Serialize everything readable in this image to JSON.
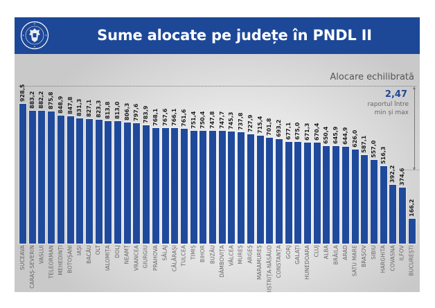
{
  "header": {
    "title": "Sume alocate pe județe în PNDL II",
    "logo_text_top": "GUVERNUL",
    "logo_text_bottom": "ROMÂNIEI"
  },
  "annotations": {
    "balance_label": "Alocare echilibrată",
    "ratio_value": "2,47",
    "ratio_desc_line1": "raportul între",
    "ratio_desc_line2": "min și max"
  },
  "colors": {
    "header_bg": "#1d4898",
    "bar": "#1f4a9c",
    "ratio_value": "#1d4898"
  },
  "chart_data": {
    "type": "bar",
    "title": "Sume alocate pe județe în PNDL II",
    "xlabel": "",
    "ylabel": "",
    "ylim": [
      0,
      928.5
    ],
    "grid": false,
    "legend": null,
    "categories": [
      "SUCEAVA",
      "CARAȘ-SEVERIN",
      "VASLUI",
      "TELEORMAN",
      "MEHEDINȚI",
      "BOTOȘANI",
      "IAȘI",
      "BACĂU",
      "OLT",
      "IALOMIȚA",
      "DOLJ",
      "NEAMȚ",
      "VRANCEA",
      "GIURGIU",
      "PRAHOVA",
      "SĂLAJ",
      "CĂLĂRAȘI",
      "TULCEA",
      "TIMIȘ",
      "BIHOR",
      "BUZĂU",
      "DÂMBOVIȚA",
      "VÂLCEA",
      "MUREȘ",
      "ARGEȘ",
      "MARAMUREȘ",
      "BISTRIȚA-NĂSĂUD",
      "CONSTANȚA",
      "GORJ",
      "GALAȚI",
      "HUNEDOARA",
      "CLUJ",
      "ALBA",
      "BRĂILA",
      "ARAD",
      "SATU MARE",
      "BRAȘOV",
      "SIBIU",
      "HARGHITA",
      "COVASNA",
      "ILFOV",
      "BUCUREȘTI"
    ],
    "values": [
      928.5,
      883.2,
      882.2,
      875.8,
      848.9,
      847.8,
      831.3,
      827.1,
      823.3,
      813.8,
      813.0,
      806.3,
      797.6,
      783.9,
      768.1,
      767.6,
      766.1,
      761.6,
      751.4,
      750.4,
      747.8,
      747.7,
      745.3,
      737.8,
      727.9,
      715.4,
      701.8,
      693.2,
      677.1,
      675.0,
      671.3,
      670.4,
      650.4,
      645.9,
      644.9,
      626.0,
      587.1,
      557.0,
      516.3,
      392.2,
      374.6,
      166.2
    ],
    "value_labels": [
      "928,5",
      "883,2",
      "882,2",
      "875,8",
      "848,9",
      "847,8",
      "831,3",
      "827,1",
      "823,3",
      "813,8",
      "813,0",
      "806,3",
      "797,6",
      "783,9",
      "768,1",
      "767,6",
      "766,1",
      "761,6",
      "751,4",
      "750,4",
      "747,8",
      "747,7",
      "745,3",
      "737,8",
      "727,9",
      "715,4",
      "701,8",
      "693,2",
      "677,1",
      "675,0",
      "671,3",
      "670,4",
      "650,4",
      "645,9",
      "644,9",
      "626,0",
      "587,1",
      "557,0",
      "516,3",
      "392,2",
      "374,6",
      "166,2"
    ],
    "annotations": [
      {
        "text": "Alocare echilibrată",
        "type": "reference-line"
      },
      {
        "text": "2,47 raportul între min și max",
        "type": "range-arrow"
      }
    ]
  }
}
